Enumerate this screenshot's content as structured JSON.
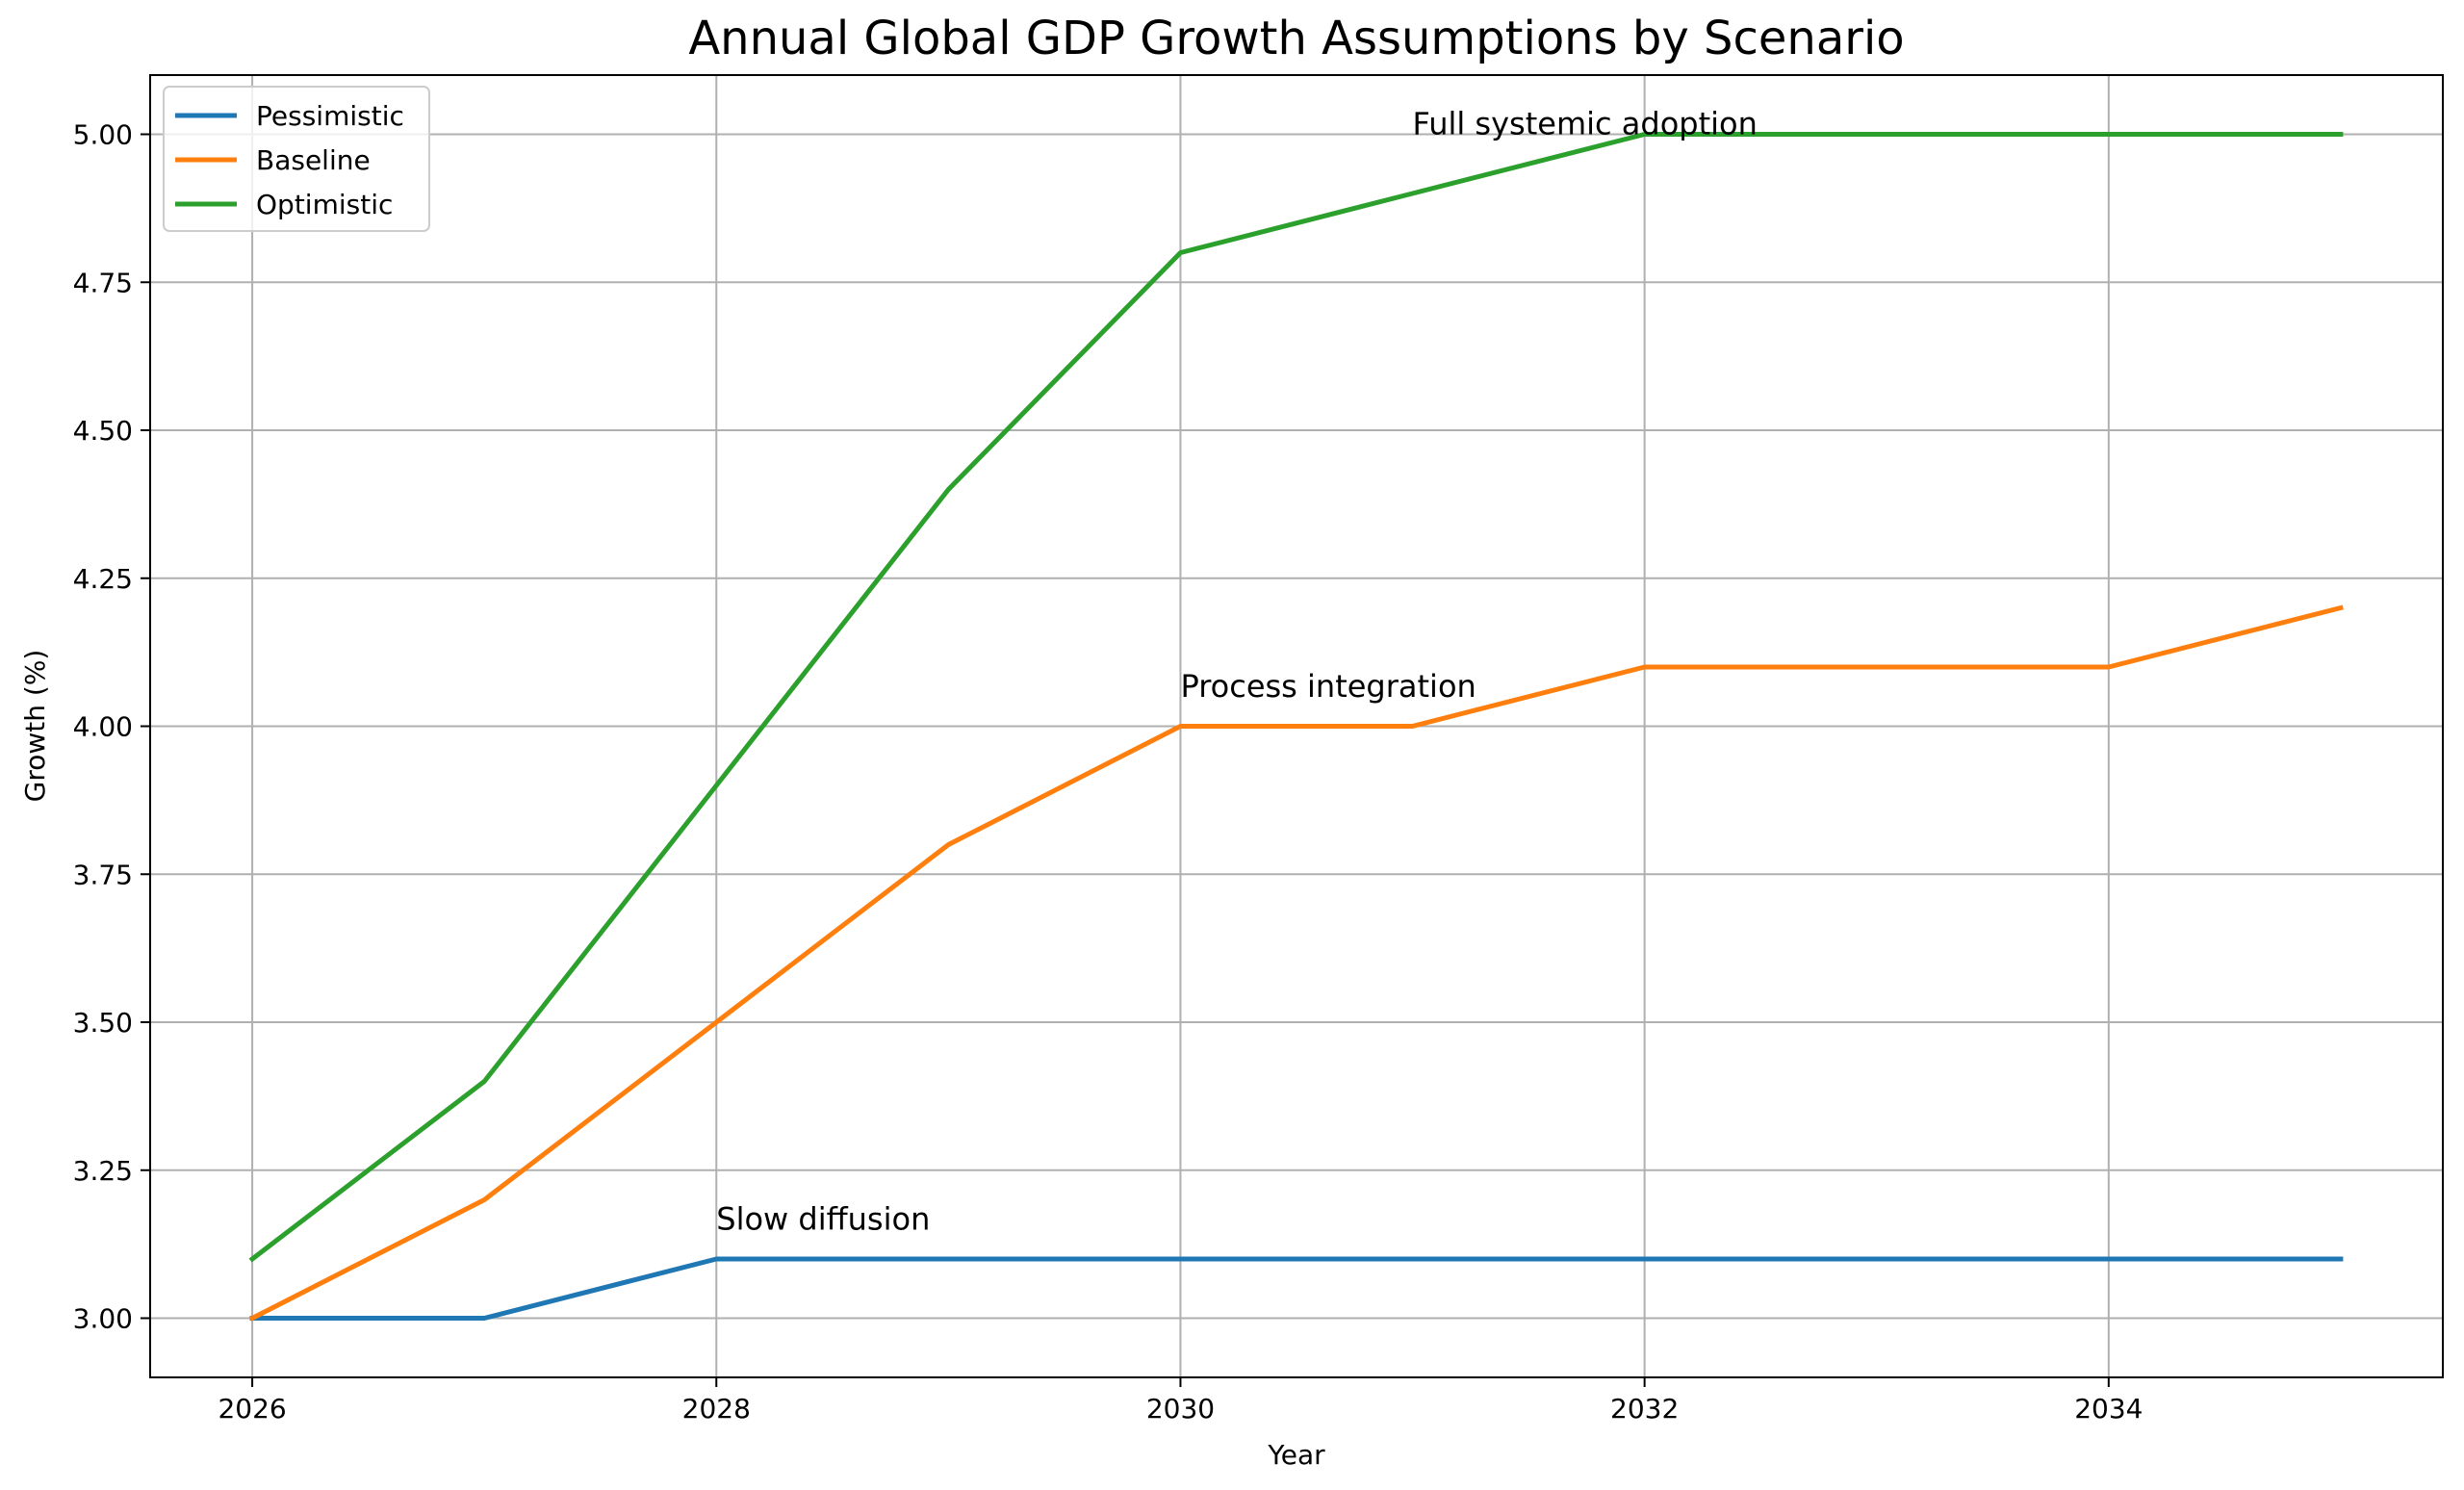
{
  "chart_data": {
    "type": "line",
    "title": "Annual Global GDP Growth Assumptions by Scenario",
    "xlabel": "Year",
    "ylabel": "Growth (%)",
    "x": [
      2026,
      2027,
      2028,
      2029,
      2030,
      2031,
      2032,
      2033,
      2034,
      2035
    ],
    "xlim": [
      2025.56,
      2035.44
    ],
    "ylim": [
      2.9,
      5.1
    ],
    "xticks": [
      2026,
      2028,
      2030,
      2032,
      2034
    ],
    "xtick_labels": [
      "2026",
      "2028",
      "2030",
      "2032",
      "2034"
    ],
    "yticks": [
      3.0,
      3.25,
      3.5,
      3.75,
      4.0,
      4.25,
      4.5,
      4.75,
      5.0
    ],
    "ytick_labels": [
      "3.00",
      "3.25",
      "3.50",
      "3.75",
      "4.00",
      "4.25",
      "4.50",
      "4.75",
      "5.00"
    ],
    "grid": true,
    "legend_position": "top-left",
    "series": [
      {
        "name": "Pessimistic",
        "color": "#1f77b4",
        "values": [
          3.0,
          3.0,
          3.1,
          3.1,
          3.1,
          3.1,
          3.1,
          3.1,
          3.1,
          3.1
        ]
      },
      {
        "name": "Baseline",
        "color": "#ff7f0e",
        "values": [
          3.0,
          3.2,
          3.5,
          3.8,
          4.0,
          4.0,
          4.1,
          4.1,
          4.1,
          4.2
        ]
      },
      {
        "name": "Optimistic",
        "color": "#2ca02c",
        "values": [
          3.1,
          3.4,
          3.9,
          4.4,
          4.8,
          4.9,
          5.0,
          5.0,
          5.0,
          5.0
        ]
      }
    ],
    "annotations": [
      {
        "text": "Slow diffusion",
        "x": 2028,
        "y": 3.15
      },
      {
        "text": "Process integration",
        "x": 2030,
        "y": 4.05
      },
      {
        "text": "Full systemic adoption",
        "x": 2031,
        "y": 5.0
      }
    ]
  }
}
